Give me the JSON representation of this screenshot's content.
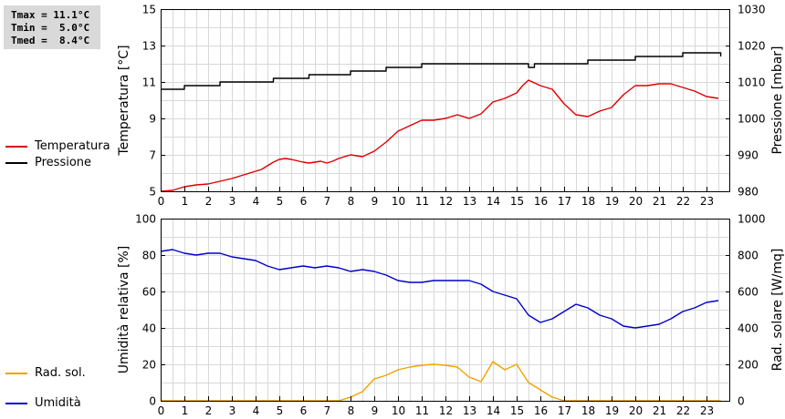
{
  "stats": {
    "tmax": "Tmax = 11.1°C",
    "tmin": "Tmin =  5.0°C",
    "tmed": "Tmed =  8.4°C"
  },
  "legend_top": [
    {
      "label": "Temperatura",
      "color": "#dd0000"
    },
    {
      "label": "Pressione",
      "color": "#000000"
    }
  ],
  "legend_bottom": [
    {
      "label": "Umidità",
      "color": "#0000cc"
    },
    {
      "label": "Rad. sol.",
      "color": "#f2a100"
    }
  ],
  "chart_data": [
    {
      "type": "line",
      "xlim": [
        0,
        24
      ],
      "x_ticks": [
        "0",
        "1",
        "2",
        "3",
        "4",
        "5",
        "6",
        "7",
        "8",
        "9",
        "10",
        "11",
        "12",
        "13",
        "14",
        "15",
        "16",
        "17",
        "18",
        "19",
        "20",
        "21",
        "22",
        "23"
      ],
      "ylabel_left": "Temperatura [°C]",
      "ylabel_right": "Pressione [mbar]",
      "ylim_left": [
        5,
        15
      ],
      "yticks_left": [
        "5",
        "7",
        "9",
        "11",
        "13",
        "15"
      ],
      "ylim_right": [
        980,
        1030
      ],
      "yticks_right": [
        "980",
        "990",
        "1000",
        "1010",
        "1020",
        "1030"
      ],
      "grid": true,
      "series": [
        {
          "name": "Temperatura",
          "axis": "left",
          "color": "#dd0000",
          "points": [
            [
              0.0,
              5.0
            ],
            [
              0.5,
              5.05
            ],
            [
              1.0,
              5.25
            ],
            [
              1.5,
              5.35
            ],
            [
              2.0,
              5.4
            ],
            [
              2.5,
              5.55
            ],
            [
              3.0,
              5.7
            ],
            [
              3.5,
              5.9
            ],
            [
              4.0,
              6.1
            ],
            [
              4.25,
              6.2
            ],
            [
              4.5,
              6.4
            ],
            [
              4.75,
              6.6
            ],
            [
              5.0,
              6.75
            ],
            [
              5.25,
              6.8
            ],
            [
              5.5,
              6.75
            ],
            [
              6.0,
              6.6
            ],
            [
              6.25,
              6.55
            ],
            [
              6.5,
              6.6
            ],
            [
              6.75,
              6.65
            ],
            [
              7.0,
              6.55
            ],
            [
              7.25,
              6.65
            ],
            [
              7.5,
              6.8
            ],
            [
              8.0,
              7.0
            ],
            [
              8.5,
              6.9
            ],
            [
              9.0,
              7.2
            ],
            [
              9.5,
              7.7
            ],
            [
              10.0,
              8.3
            ],
            [
              10.5,
              8.6
            ],
            [
              11.0,
              8.9
            ],
            [
              11.5,
              8.9
            ],
            [
              12.0,
              9.0
            ],
            [
              12.5,
              9.2
            ],
            [
              13.0,
              9.0
            ],
            [
              13.5,
              9.25
            ],
            [
              14.0,
              9.9
            ],
            [
              14.5,
              10.1
            ],
            [
              15.0,
              10.4
            ],
            [
              15.25,
              10.8
            ],
            [
              15.5,
              11.1
            ],
            [
              16.0,
              10.8
            ],
            [
              16.5,
              10.6
            ],
            [
              17.0,
              9.8
            ],
            [
              17.5,
              9.2
            ],
            [
              18.0,
              9.1
            ],
            [
              18.5,
              9.4
            ],
            [
              19.0,
              9.6
            ],
            [
              19.5,
              10.3
            ],
            [
              20.0,
              10.8
            ],
            [
              20.5,
              10.8
            ],
            [
              21.0,
              10.9
            ],
            [
              21.5,
              10.9
            ],
            [
              22.0,
              10.7
            ],
            [
              22.5,
              10.5
            ],
            [
              23.0,
              10.2
            ],
            [
              23.5,
              10.1
            ]
          ]
        },
        {
          "name": "Pressione",
          "axis": "right",
          "color": "#000000",
          "step": true,
          "points": [
            [
              0.0,
              1008
            ],
            [
              1.0,
              1009
            ],
            [
              2.0,
              1009
            ],
            [
              2.5,
              1010
            ],
            [
              4.0,
              1010
            ],
            [
              4.75,
              1011
            ],
            [
              6.0,
              1011
            ],
            [
              6.25,
              1012
            ],
            [
              7.5,
              1012
            ],
            [
              8.0,
              1013
            ],
            [
              9.25,
              1013
            ],
            [
              9.5,
              1014
            ],
            [
              10.5,
              1014
            ],
            [
              11.0,
              1015
            ],
            [
              15.0,
              1015
            ],
            [
              15.5,
              1014
            ],
            [
              15.75,
              1015
            ],
            [
              17.5,
              1015
            ],
            [
              18.0,
              1016
            ],
            [
              19.5,
              1016
            ],
            [
              20.0,
              1017
            ],
            [
              21.5,
              1017
            ],
            [
              22.0,
              1018
            ],
            [
              23.0,
              1018
            ],
            [
              23.6,
              1017
            ]
          ]
        }
      ]
    },
    {
      "type": "line",
      "xlim": [
        0,
        24
      ],
      "x_ticks": [
        "0",
        "1",
        "2",
        "3",
        "4",
        "5",
        "6",
        "7",
        "8",
        "9",
        "10",
        "11",
        "12",
        "13",
        "14",
        "15",
        "16",
        "17",
        "18",
        "19",
        "20",
        "21",
        "22",
        "23"
      ],
      "ylabel_left": "Umidità relativa [%]",
      "ylabel_right": "Rad. solare [W/mq]",
      "ylim_left": [
        0,
        100
      ],
      "yticks_left": [
        "0",
        "20",
        "40",
        "60",
        "80",
        "100"
      ],
      "ylim_right": [
        0,
        1000
      ],
      "yticks_right": [
        "0",
        "200",
        "400",
        "600",
        "800",
        "1000"
      ],
      "grid": true,
      "series": [
        {
          "name": "Umidità",
          "axis": "left",
          "color": "#0000cc",
          "points": [
            [
              0.0,
              82
            ],
            [
              0.5,
              83
            ],
            [
              1.0,
              81
            ],
            [
              1.5,
              80
            ],
            [
              2.0,
              81
            ],
            [
              2.5,
              81
            ],
            [
              3.0,
              79
            ],
            [
              3.5,
              78
            ],
            [
              4.0,
              77
            ],
            [
              4.5,
              74
            ],
            [
              5.0,
              72
            ],
            [
              5.5,
              73
            ],
            [
              6.0,
              74
            ],
            [
              6.5,
              73
            ],
            [
              7.0,
              74
            ],
            [
              7.5,
              73
            ],
            [
              8.0,
              71
            ],
            [
              8.5,
              72
            ],
            [
              9.0,
              71
            ],
            [
              9.5,
              69
            ],
            [
              10.0,
              66
            ],
            [
              10.5,
              65
            ],
            [
              11.0,
              65
            ],
            [
              11.5,
              66
            ],
            [
              12.0,
              66
            ],
            [
              12.5,
              66
            ],
            [
              13.0,
              66
            ],
            [
              13.5,
              64
            ],
            [
              14.0,
              60
            ],
            [
              14.5,
              58
            ],
            [
              15.0,
              56
            ],
            [
              15.5,
              47
            ],
            [
              16.0,
              43
            ],
            [
              16.5,
              45
            ],
            [
              17.0,
              49
            ],
            [
              17.5,
              53
            ],
            [
              18.0,
              51
            ],
            [
              18.5,
              47
            ],
            [
              19.0,
              45
            ],
            [
              19.5,
              41
            ],
            [
              20.0,
              40
            ],
            [
              20.5,
              41
            ],
            [
              21.0,
              42
            ],
            [
              21.5,
              45
            ],
            [
              22.0,
              49
            ],
            [
              22.5,
              51
            ],
            [
              23.0,
              54
            ],
            [
              23.5,
              55
            ]
          ]
        },
        {
          "name": "Rad. sol.",
          "axis": "right",
          "color": "#f2a100",
          "points": [
            [
              0.0,
              0
            ],
            [
              7.5,
              0
            ],
            [
              8.0,
              20
            ],
            [
              8.5,
              50
            ],
            [
              9.0,
              120
            ],
            [
              9.5,
              140
            ],
            [
              10.0,
              170
            ],
            [
              10.5,
              185
            ],
            [
              11.0,
              195
            ],
            [
              11.5,
              200
            ],
            [
              12.0,
              195
            ],
            [
              12.5,
              185
            ],
            [
              13.0,
              130
            ],
            [
              13.5,
              105
            ],
            [
              14.0,
              215
            ],
            [
              14.5,
              170
            ],
            [
              15.0,
              200
            ],
            [
              15.5,
              100
            ],
            [
              16.0,
              60
            ],
            [
              16.5,
              20
            ],
            [
              17.0,
              0
            ],
            [
              23.6,
              0
            ]
          ]
        }
      ]
    }
  ]
}
